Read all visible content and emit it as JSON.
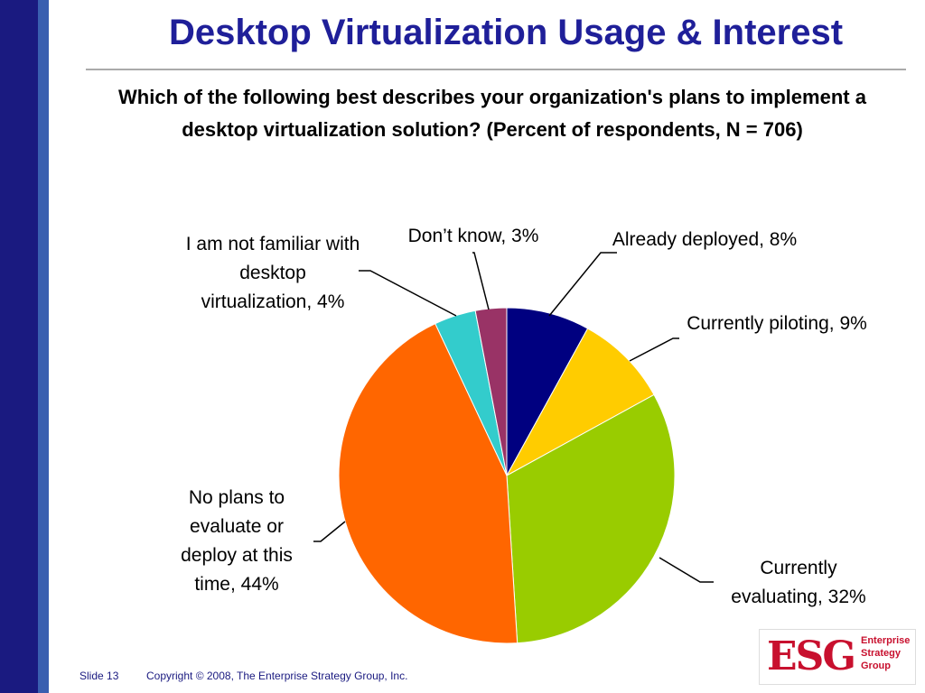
{
  "title": "Desktop Virtualization Usage & Interest",
  "footer": {
    "slide": "Slide 13",
    "copyright": "Copyright © 2008, The Enterprise Strategy Group, Inc."
  },
  "logo": {
    "mark": "ESG",
    "lines": [
      "Enterprise",
      "Strategy",
      "Group"
    ]
  },
  "chart_data": {
    "type": "pie",
    "title": "Which of the following best describes your organization's plans to implement a desktop virtualization solution? (Percent of respondents, N = 706)",
    "categories": [
      "Already deployed, 8%",
      "Currently piloting, 9%",
      "Currently evaluating, 32%",
      "No plans to evaluate or deploy at this time, 44%",
      "I am not familiar with desktop virtualization, 4%",
      "Don’t know, 3%"
    ],
    "values": [
      8,
      9,
      32,
      44,
      4,
      3
    ],
    "colors": [
      "#000080",
      "#ffcc00",
      "#99cc00",
      "#ff6600",
      "#33cccc",
      "#993366"
    ]
  }
}
